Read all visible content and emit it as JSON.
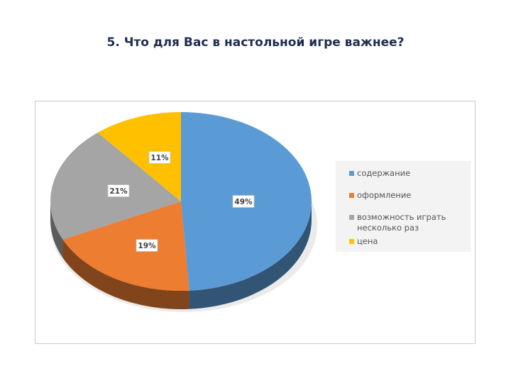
{
  "title": "5. Что для Вас в настольной игре важнее?",
  "chart_data": {
    "type": "pie",
    "style": "3d",
    "title": "",
    "legend_position": "right",
    "slices": [
      {
        "label": "содержание",
        "value": 49,
        "data_label": "49%",
        "color": "#5b9bd5"
      },
      {
        "label": "оформление",
        "value": 19,
        "data_label": "19%",
        "color": "#ed7d31"
      },
      {
        "label": "возможность играть несколько раз",
        "value": 21,
        "data_label": "21%",
        "color": "#a5a5a5"
      },
      {
        "label": "цена",
        "value": 11,
        "data_label": "11%",
        "color": "#ffc000"
      }
    ]
  }
}
